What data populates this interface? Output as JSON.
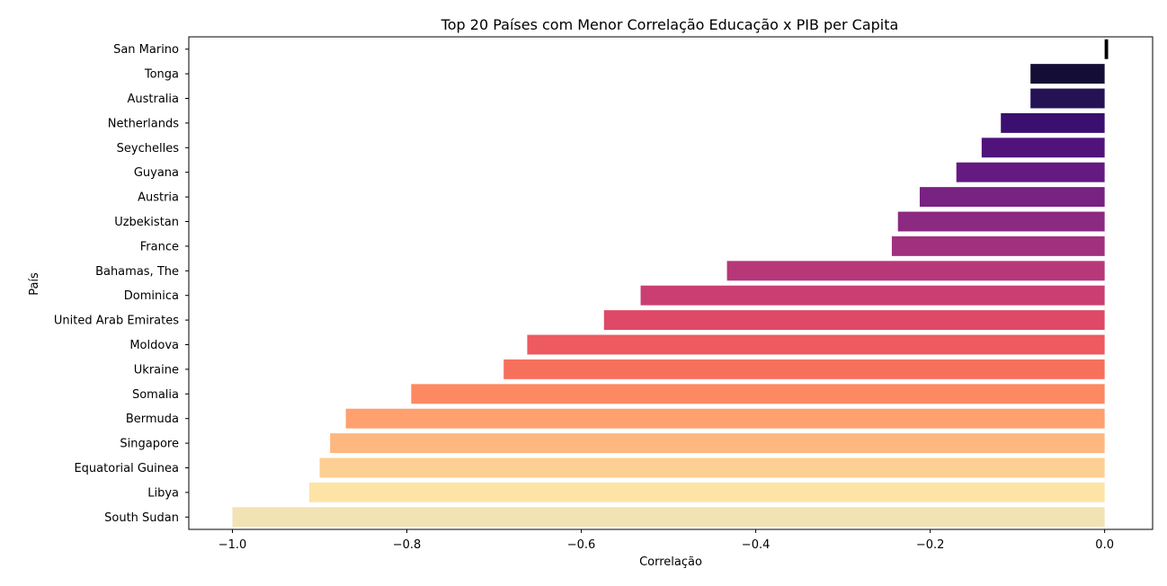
{
  "chart_data": {
    "type": "bar",
    "orientation": "horizontal",
    "title": "Top 20 Países com Menor Correlação Educação x PIB per Capita",
    "xlabel": "Correlação",
    "ylabel": "País",
    "xlim": [
      -1.05,
      0.055
    ],
    "xticks": [
      -1.0,
      -0.8,
      -0.6,
      -0.4,
      -0.2,
      0.0
    ],
    "xtick_labels": [
      "−1.0",
      "−0.8",
      "−0.6",
      "−0.4",
      "−0.2",
      "0.0"
    ],
    "grid": false,
    "legend": "none",
    "colormap": "magma",
    "categories": [
      "San Marino",
      "Tonga",
      "Australia",
      "Netherlands",
      "Seychelles",
      "Guyana",
      "Austria",
      "Uzbekistan",
      "France",
      "Bahamas, The",
      "Dominica",
      "United Arab Emirates",
      "Moldova",
      "Ukraine",
      "Somalia",
      "Bermuda",
      "Singapore",
      "Equatorial Guinea",
      "Libya",
      "South Sudan"
    ],
    "values": [
      0.004,
      -0.085,
      -0.085,
      -0.119,
      -0.141,
      -0.17,
      -0.212,
      -0.237,
      -0.244,
      -0.433,
      -0.532,
      -0.574,
      -0.662,
      -0.689,
      -0.795,
      -0.87,
      -0.888,
      -0.9,
      -0.912,
      -1.0
    ],
    "colors": [
      "#000004",
      "#140e36",
      "#251255",
      "#3b0f70",
      "#51127c",
      "#641a80",
      "#782281",
      "#8c2981",
      "#a1307e",
      "#b73779",
      "#ca3e72",
      "#de4968",
      "#ed5a5f",
      "#f7705c",
      "#fc8961",
      "#fea16e",
      "#feb77e",
      "#fecf92",
      "#fde4a6",
      "#f3e2b4"
    ]
  }
}
